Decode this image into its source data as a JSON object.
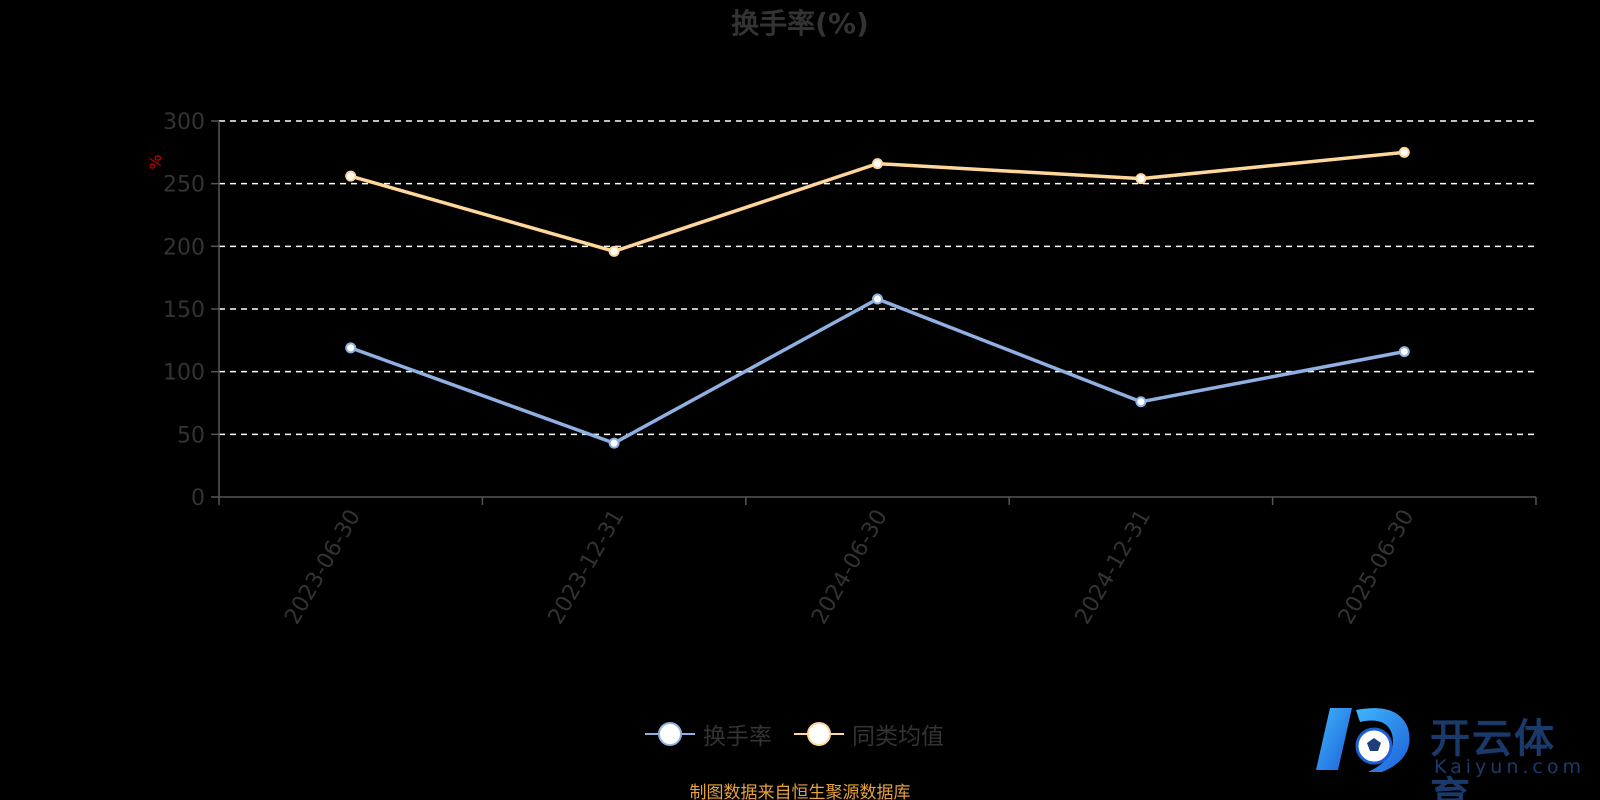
{
  "title": "换手率(%)",
  "footnote": "制图数据来自恒生聚源数据库",
  "watermark": {
    "brand": "开云体育",
    "domain": "Kaiyun.com"
  },
  "colors": {
    "background": "#000000",
    "series_turnover": "#8fb0e0",
    "series_peer_avg": "#ffd79a",
    "grid": "#ffffff",
    "axis": "#555555",
    "text_dim": "#333333",
    "unit_label": "#cc0000"
  },
  "legend": [
    {
      "label": "换手率"
    },
    {
      "label": "同类均值"
    }
  ],
  "chart_data": {
    "type": "line",
    "title": "换手率(%)",
    "xlabel": "",
    "ylabel": "%",
    "categories": [
      "2023-06-30",
      "2023-12-31",
      "2024-06-30",
      "2024-12-31",
      "2025-06-30"
    ],
    "ylim": [
      0,
      300
    ],
    "yticks": [
      0,
      50,
      100,
      150,
      200,
      250,
      300
    ],
    "grid": true,
    "legend_position": "bottom",
    "series": [
      {
        "name": "换手率",
        "values": [
          119,
          43,
          158,
          76,
          116
        ]
      },
      {
        "name": "同类均值",
        "values": [
          256,
          196,
          266,
          254,
          275
        ]
      }
    ]
  }
}
